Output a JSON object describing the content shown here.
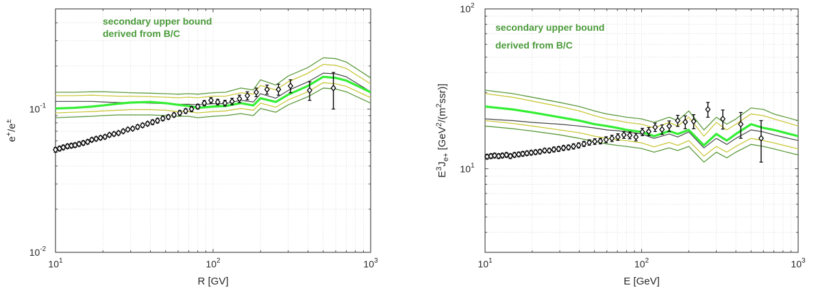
{
  "colors": {
    "central_curve": "#33ee33",
    "outer_band": "#5a9a3a",
    "inner_band": "#c8c83a",
    "reference_curve": "#444444",
    "data_points": "#000000",
    "annotation": "#4a9a3a"
  },
  "chart_data": [
    {
      "type": "line",
      "xlabel": "R [GV]",
      "ylabel": "e⁺/e±",
      "ylabel_parts": {
        "base1": "e",
        "sup1": "+",
        "mid": "/e",
        "sup2": "±"
      },
      "xscale": "log",
      "yscale": "log",
      "xlim": [
        10,
        1000
      ],
      "ylim": [
        0.01,
        0.5
      ],
      "grid": true,
      "xticks": [
        {
          "v": 10,
          "base": "10",
          "exp": "1"
        },
        {
          "v": 100,
          "base": "10",
          "exp": "2"
        },
        {
          "v": 1000,
          "base": "10",
          "exp": "3"
        }
      ],
      "yticks": [
        {
          "v": 0.01,
          "base": "10",
          "exp": "-2"
        },
        {
          "v": 0.1,
          "base": "10",
          "exp": "-1"
        }
      ],
      "annotation": [
        "secondary upper bound",
        "derived from B/C"
      ],
      "x": [
        10,
        13,
        17,
        20,
        25,
        30,
        40,
        50,
        60,
        70,
        80,
        100,
        120,
        150,
        180,
        200,
        250,
        300,
        400,
        500,
        600,
        700,
        1000
      ],
      "series": [
        {
          "role": "outer_upper",
          "values": [
            0.131,
            0.131,
            0.132,
            0.132,
            0.131,
            0.13,
            0.129,
            0.128,
            0.127,
            0.128,
            0.127,
            0.13,
            0.131,
            0.14,
            0.136,
            0.16,
            0.147,
            0.17,
            0.195,
            0.228,
            0.225,
            0.213,
            0.165
          ]
        },
        {
          "role": "inner_upper",
          "values": [
            0.124,
            0.124,
            0.125,
            0.124,
            0.123,
            0.123,
            0.122,
            0.121,
            0.12,
            0.121,
            0.12,
            0.123,
            0.123,
            0.13,
            0.127,
            0.146,
            0.136,
            0.155,
            0.178,
            0.205,
            0.202,
            0.192,
            0.15
          ]
        },
        {
          "role": "reference",
          "values": [
            0.113,
            0.113,
            0.113,
            0.112,
            0.111,
            0.111,
            0.11,
            0.109,
            0.108,
            0.108,
            0.107,
            0.109,
            0.109,
            0.115,
            0.112,
            0.128,
            0.119,
            0.135,
            0.155,
            0.178,
            0.176,
            0.168,
            0.132
          ]
        },
        {
          "role": "central",
          "values": [
            0.101,
            0.102,
            0.104,
            0.106,
            0.109,
            0.111,
            0.112,
            0.11,
            0.107,
            0.105,
            0.102,
            0.104,
            0.105,
            0.11,
            0.106,
            0.119,
            0.112,
            0.126,
            0.145,
            0.168,
            0.165,
            0.158,
            0.131
          ]
        },
        {
          "role": "inner_lower",
          "values": [
            0.094,
            0.095,
            0.096,
            0.097,
            0.098,
            0.099,
            0.099,
            0.098,
            0.096,
            0.096,
            0.094,
            0.096,
            0.097,
            0.101,
            0.098,
            0.11,
            0.103,
            0.116,
            0.132,
            0.153,
            0.15,
            0.144,
            0.12
          ]
        },
        {
          "role": "outer_lower",
          "values": [
            0.087,
            0.088,
            0.089,
            0.09,
            0.091,
            0.091,
            0.091,
            0.09,
            0.089,
            0.089,
            0.087,
            0.089,
            0.09,
            0.093,
            0.09,
            0.101,
            0.095,
            0.107,
            0.122,
            0.14,
            0.138,
            0.132,
            0.11
          ]
        }
      ],
      "points": [
        {
          "x": 10,
          "y": 0.052,
          "e": 0.002
        },
        {
          "x": 10.6,
          "y": 0.053,
          "e": 0.002
        },
        {
          "x": 11.2,
          "y": 0.054,
          "e": 0.002
        },
        {
          "x": 11.9,
          "y": 0.055,
          "e": 0.002
        },
        {
          "x": 12.6,
          "y": 0.0555,
          "e": 0.002
        },
        {
          "x": 13.3,
          "y": 0.056,
          "e": 0.002
        },
        {
          "x": 14.1,
          "y": 0.057,
          "e": 0.002
        },
        {
          "x": 15,
          "y": 0.058,
          "e": 0.002
        },
        {
          "x": 16,
          "y": 0.059,
          "e": 0.002
        },
        {
          "x": 17,
          "y": 0.061,
          "e": 0.002
        },
        {
          "x": 18.1,
          "y": 0.062,
          "e": 0.002
        },
        {
          "x": 19.3,
          "y": 0.063,
          "e": 0.002
        },
        {
          "x": 20.6,
          "y": 0.064,
          "e": 0.002
        },
        {
          "x": 22,
          "y": 0.066,
          "e": 0.002
        },
        {
          "x": 23.5,
          "y": 0.067,
          "e": 0.002
        },
        {
          "x": 25.1,
          "y": 0.068,
          "e": 0.002
        },
        {
          "x": 26.9,
          "y": 0.07,
          "e": 0.002
        },
        {
          "x": 28.8,
          "y": 0.072,
          "e": 0.002
        },
        {
          "x": 30.9,
          "y": 0.073,
          "e": 0.002
        },
        {
          "x": 33.2,
          "y": 0.075,
          "e": 0.0025
        },
        {
          "x": 35.7,
          "y": 0.077,
          "e": 0.0025
        },
        {
          "x": 38.4,
          "y": 0.079,
          "e": 0.0025
        },
        {
          "x": 41.3,
          "y": 0.081,
          "e": 0.003
        },
        {
          "x": 44.4,
          "y": 0.083,
          "e": 0.003
        },
        {
          "x": 48,
          "y": 0.086,
          "e": 0.003
        },
        {
          "x": 52,
          "y": 0.088,
          "e": 0.003
        },
        {
          "x": 56.5,
          "y": 0.091,
          "e": 0.003
        },
        {
          "x": 61.5,
          "y": 0.094,
          "e": 0.0035
        },
        {
          "x": 67,
          "y": 0.097,
          "e": 0.0035
        },
        {
          "x": 73,
          "y": 0.1,
          "e": 0.004
        },
        {
          "x": 80,
          "y": 0.104,
          "e": 0.004
        },
        {
          "x": 88,
          "y": 0.11,
          "e": 0.0045
        },
        {
          "x": 97,
          "y": 0.115,
          "e": 0.005
        },
        {
          "x": 107,
          "y": 0.112,
          "e": 0.005
        },
        {
          "x": 119,
          "y": 0.11,
          "e": 0.005
        },
        {
          "x": 132,
          "y": 0.113,
          "e": 0.006
        },
        {
          "x": 147,
          "y": 0.118,
          "e": 0.007
        },
        {
          "x": 165,
          "y": 0.124,
          "e": 0.008
        },
        {
          "x": 188,
          "y": 0.131,
          "e": 0.009
        },
        {
          "x": 220,
          "y": 0.137,
          "e": 0.01
        },
        {
          "x": 260,
          "y": 0.137,
          "e": 0.012
        },
        {
          "x": 310,
          "y": 0.145,
          "e": 0.015
        },
        {
          "x": 410,
          "y": 0.135,
          "e": 0.02
        },
        {
          "x": 580,
          "y": 0.14,
          "e": 0.04
        }
      ]
    },
    {
      "type": "line",
      "xlabel": "E [GeV]",
      "ylabel": "E³J_e+ [GeV²/(m²ssr)]",
      "ylabel_parts": {
        "a": "E",
        "sup1": "3",
        "b": "J",
        "sub": "e+",
        "c": " [GeV",
        "sup2": "2",
        "d": "/(m",
        "sup3": "2",
        "e": "ssr)]"
      },
      "xscale": "log",
      "yscale": "log",
      "xlim": [
        10,
        1000
      ],
      "ylim": [
        3,
        100
      ],
      "grid": true,
      "xticks": [
        {
          "v": 10,
          "base": "10",
          "exp": "1"
        },
        {
          "v": 100,
          "base": "10",
          "exp": "2"
        },
        {
          "v": 1000,
          "base": "10",
          "exp": "3"
        }
      ],
      "yticks": [
        {
          "v": 10,
          "base": "10",
          "exp": "1"
        },
        {
          "v": 100,
          "base": "10",
          "exp": "2"
        }
      ],
      "annotation": [
        "secondary upper bound",
        "derived from B/C"
      ],
      "x": [
        10,
        15,
        20,
        30,
        40,
        50,
        60,
        70,
        80,
        100,
        120,
        150,
        170,
        200,
        250,
        300,
        350,
        400,
        500,
        600,
        700,
        1000
      ],
      "series": [
        {
          "role": "outer_upper",
          "values": [
            31,
            29.5,
            28,
            26,
            24.5,
            23,
            22,
            21.5,
            21,
            20.5,
            19.5,
            21,
            20,
            23,
            17.5,
            21,
            19,
            20.5,
            24,
            23.5,
            22,
            20
          ]
        },
        {
          "role": "inner_upper",
          "values": [
            29.5,
            28,
            26.5,
            24.5,
            23,
            21.5,
            20.5,
            20,
            19.5,
            19,
            18,
            19.5,
            18.5,
            21,
            16,
            19.5,
            17.5,
            19,
            22,
            21.5,
            20.5,
            18.5
          ]
        },
        {
          "role": "central",
          "values": [
            24.5,
            23.5,
            22.5,
            21,
            20,
            19,
            18.5,
            18,
            17.5,
            17,
            16,
            17.2,
            16.5,
            17.5,
            14,
            16.5,
            15,
            16.5,
            19,
            18,
            17.5,
            16
          ]
        },
        {
          "role": "reference",
          "values": [
            20.5,
            20,
            19.5,
            19,
            18.5,
            18,
            17.5,
            17.3,
            17,
            16.5,
            15.5,
            16.5,
            15.8,
            17,
            13.5,
            15.5,
            14.2,
            15.5,
            17.5,
            17,
            16.3,
            15
          ]
        },
        {
          "role": "inner_lower",
          "values": [
            20,
            19.2,
            18.5,
            17.5,
            16.8,
            16,
            15.5,
            15.2,
            15,
            14.5,
            13.7,
            14.6,
            14,
            15,
            12,
            13.8,
            12.7,
            13.8,
            15.5,
            15,
            14.5,
            13.3
          ]
        },
        {
          "role": "outer_lower",
          "values": [
            18.5,
            17.8,
            17.2,
            16.3,
            15.5,
            14.8,
            14.3,
            14,
            13.8,
            13.4,
            12.7,
            13.5,
            13,
            13.8,
            11,
            12.7,
            11.7,
            12.7,
            14.2,
            13.8,
            13.3,
            12.2
          ]
        }
      ],
      "points": [
        {
          "x": 10.3,
          "y": 11.9,
          "e": 0.4
        },
        {
          "x": 10.9,
          "y": 12.0,
          "e": 0.4
        },
        {
          "x": 11.5,
          "y": 12.1,
          "e": 0.4
        },
        {
          "x": 12.2,
          "y": 12.0,
          "e": 0.4
        },
        {
          "x": 12.9,
          "y": 12.1,
          "e": 0.4
        },
        {
          "x": 13.7,
          "y": 12.2,
          "e": 0.4
        },
        {
          "x": 14.5,
          "y": 12.0,
          "e": 0.4
        },
        {
          "x": 15.4,
          "y": 12.2,
          "e": 0.4
        },
        {
          "x": 16.4,
          "y": 12.3,
          "e": 0.4
        },
        {
          "x": 17.4,
          "y": 12.4,
          "e": 0.4
        },
        {
          "x": 18.5,
          "y": 12.5,
          "e": 0.4
        },
        {
          "x": 19.7,
          "y": 12.6,
          "e": 0.4
        },
        {
          "x": 21,
          "y": 12.7,
          "e": 0.4
        },
        {
          "x": 22.4,
          "y": 12.8,
          "e": 0.4
        },
        {
          "x": 24,
          "y": 13.0,
          "e": 0.4
        },
        {
          "x": 25.7,
          "y": 13.0,
          "e": 0.4
        },
        {
          "x": 27.5,
          "y": 13.2,
          "e": 0.45
        },
        {
          "x": 29.5,
          "y": 13.3,
          "e": 0.45
        },
        {
          "x": 31.7,
          "y": 13.5,
          "e": 0.45
        },
        {
          "x": 34.1,
          "y": 13.6,
          "e": 0.45
        },
        {
          "x": 36.7,
          "y": 13.8,
          "e": 0.5
        },
        {
          "x": 39.6,
          "y": 14.0,
          "e": 0.5
        },
        {
          "x": 42.8,
          "y": 14.3,
          "e": 0.5
        },
        {
          "x": 46.3,
          "y": 14.6,
          "e": 0.55
        },
        {
          "x": 50.2,
          "y": 14.8,
          "e": 0.6
        },
        {
          "x": 54.5,
          "y": 14.9,
          "e": 0.6
        },
        {
          "x": 59.3,
          "y": 15.2,
          "e": 0.65
        },
        {
          "x": 64.6,
          "y": 15.5,
          "e": 0.7
        },
        {
          "x": 70.5,
          "y": 15.8,
          "e": 0.75
        },
        {
          "x": 77,
          "y": 16.3,
          "e": 0.8
        },
        {
          "x": 84,
          "y": 16.2,
          "e": 0.8
        },
        {
          "x": 92,
          "y": 15.8,
          "e": 0.85
        },
        {
          "x": 101,
          "y": 17.0,
          "e": 0.9
        },
        {
          "x": 111,
          "y": 17.1,
          "e": 1.0
        },
        {
          "x": 122,
          "y": 18.2,
          "e": 1.1
        },
        {
          "x": 135,
          "y": 17.6,
          "e": 1.2
        },
        {
          "x": 150,
          "y": 18.5,
          "e": 1.4
        },
        {
          "x": 170,
          "y": 20.0,
          "e": 1.6
        },
        {
          "x": 190,
          "y": 19.6,
          "e": 1.8
        },
        {
          "x": 215,
          "y": 19.8,
          "e": 2.0
        },
        {
          "x": 265,
          "y": 23.5,
          "e": 2.5
        },
        {
          "x": 330,
          "y": 20.5,
          "e": 2.8
        },
        {
          "x": 430,
          "y": 19.0,
          "e": 3.5
        },
        {
          "x": 580,
          "y": 15.5,
          "e": 4.5
        }
      ]
    }
  ]
}
